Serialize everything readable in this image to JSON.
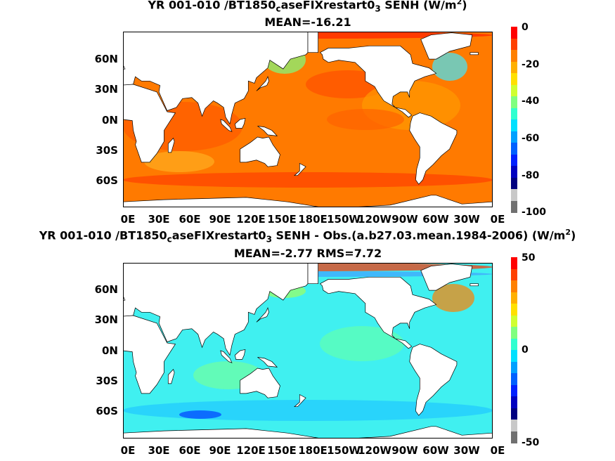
{
  "panels": [
    {
      "title_pre": "YR 001-010 /BT1850",
      "title_sub1": "c",
      "title_mid": "aseFIXrestart0",
      "title_sub2": "3",
      "title_post": " SENH (W/m",
      "title_sup": "2",
      "title_end": ")",
      "subtitle": "MEAN=-16.21",
      "colorbar": {
        "ticks": [
          "0",
          "-20",
          "-40",
          "-60",
          "-80",
          "-100"
        ],
        "colors": [
          "#ff0000",
          "#ff4000",
          "#ff8000",
          "#ffb000",
          "#ffe000",
          "#d0ff30",
          "#80ff80",
          "#30ffd0",
          "#00e0ff",
          "#00a0ff",
          "#0060ff",
          "#0020ff",
          "#0000c0",
          "#000080",
          "#c8c8c8",
          "#707070"
        ]
      },
      "field": "absolute"
    },
    {
      "title_pre": "YR 001-010 /BT1850",
      "title_sub1": "c",
      "title_mid": "aseFIXrestart0",
      "title_sub2": "3",
      "title_post": " SENH - Obs.(a.b27.03.mean.1984-2006) (W/m",
      "title_sup": "2",
      "title_end": ")",
      "subtitle": "MEAN=-2.77 RMS=7.72",
      "colorbar": {
        "ticks": [
          "50",
          "0",
          "-50"
        ],
        "colors": [
          "#ff0000",
          "#ff4000",
          "#ff8000",
          "#ffb000",
          "#ffe000",
          "#d0ff30",
          "#80ff80",
          "#30ffd0",
          "#00e0ff",
          "#00a0ff",
          "#0060ff",
          "#0020ff",
          "#0000c0",
          "#000080",
          "#c8c8c8",
          "#707070"
        ]
      },
      "field": "difference"
    }
  ],
  "lat_labels": [
    "60N",
    "30N",
    "0N",
    "30S",
    "60S"
  ],
  "lon_labels": [
    "0E",
    "30E",
    "60E",
    "90E",
    "120E",
    "150E",
    "180E",
    "150W",
    "120W",
    "90W",
    "60W",
    "30W",
    "0E"
  ]
}
